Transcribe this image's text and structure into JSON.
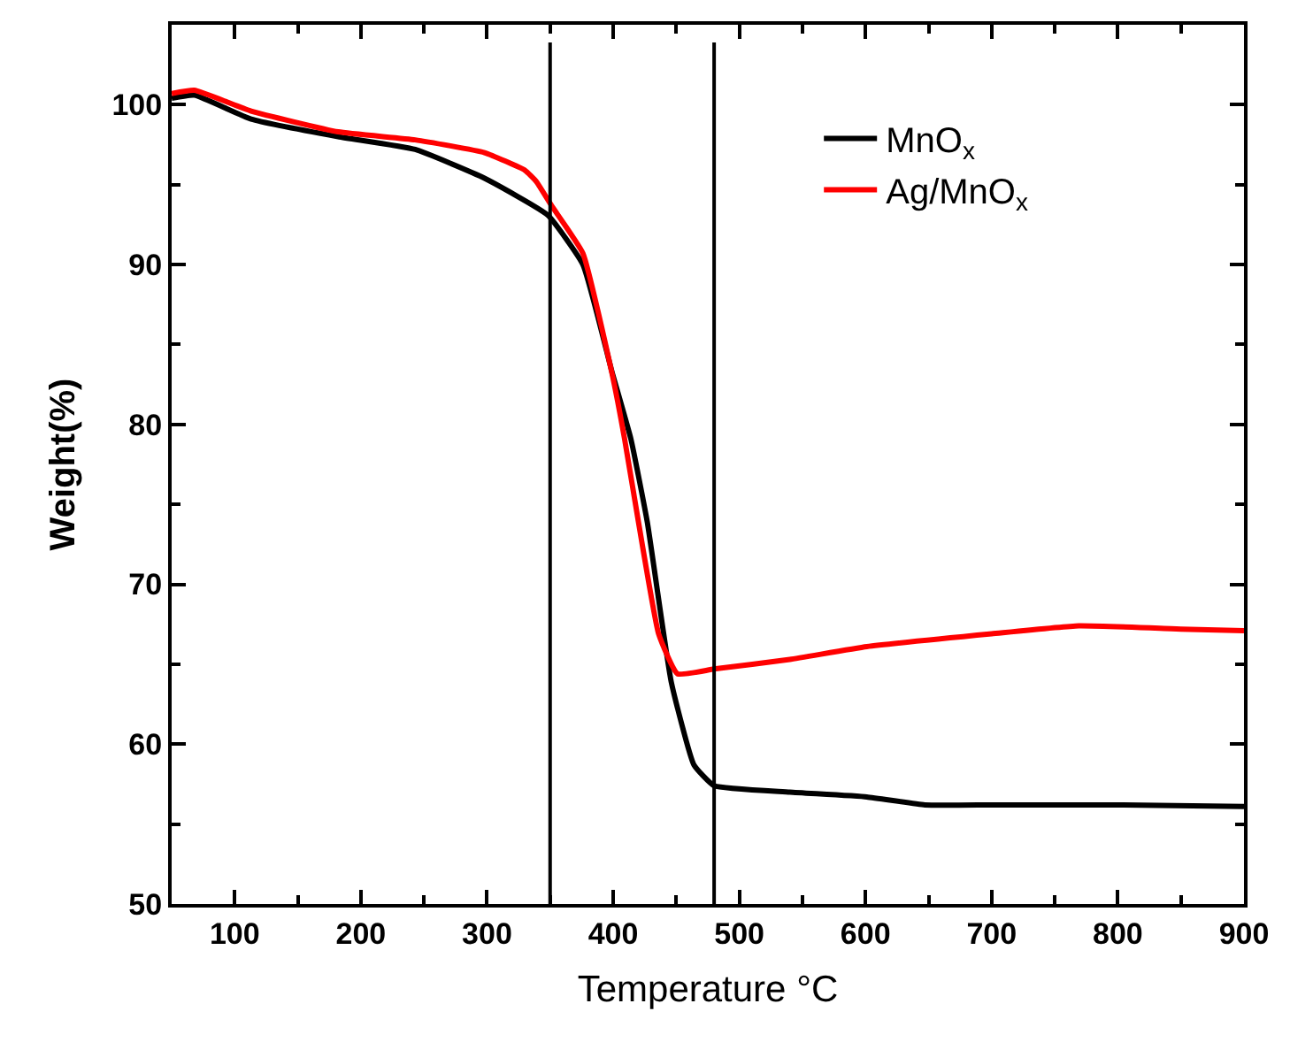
{
  "chart_data": {
    "type": "line",
    "xlabel": "Temperature °C",
    "ylabel": "Weight(%)",
    "xlim": [
      50,
      900
    ],
    "ylim": [
      50,
      105
    ],
    "xticks": [
      100,
      200,
      300,
      400,
      500,
      600,
      700,
      800,
      900
    ],
    "yticks": [
      50,
      60,
      70,
      80,
      90,
      100
    ],
    "legend": "top right",
    "line_style": "solid",
    "marker": "none",
    "series": [
      {
        "name": "MnO$_{x}$",
        "color": "#000000",
        "x": [
          50,
          68,
          113,
          182,
          243,
          298,
          348,
          376,
          399,
          414,
          427,
          446,
          464,
          480,
          540,
          601,
          647,
          700,
          800,
          900
        ],
        "values": [
          100.4,
          100.6,
          99.1,
          98.0,
          97.2,
          95.4,
          93.1,
          90.0,
          83.3,
          79.1,
          73.9,
          63.9,
          58.7,
          57.4,
          57.0,
          56.7,
          56.2,
          56.2,
          56.2,
          56.1
        ]
      },
      {
        "name": "Ag/MnO$_{x}$",
        "color": "#ff0000",
        "x": [
          50,
          68,
          113,
          182,
          243,
          298,
          330,
          339,
          351,
          376,
          399,
          409,
          420,
          436,
          451,
          480,
          540,
          601,
          700,
          769,
          850,
          900
        ],
        "values": [
          100.7,
          100.9,
          99.6,
          98.3,
          97.8,
          97.0,
          95.9,
          95.2,
          93.7,
          90.7,
          83.2,
          79.1,
          73.9,
          66.9,
          64.4,
          64.7,
          65.3,
          66.1,
          66.9,
          67.4,
          67.2,
          67.1
        ]
      }
    ],
    "ref_lines": [
      {
        "axis": "x",
        "value": 350,
        "color": "#000000",
        "line_style": "solid"
      },
      {
        "axis": "x",
        "value": 480,
        "color": "#000000",
        "line_style": "solid"
      }
    ]
  }
}
